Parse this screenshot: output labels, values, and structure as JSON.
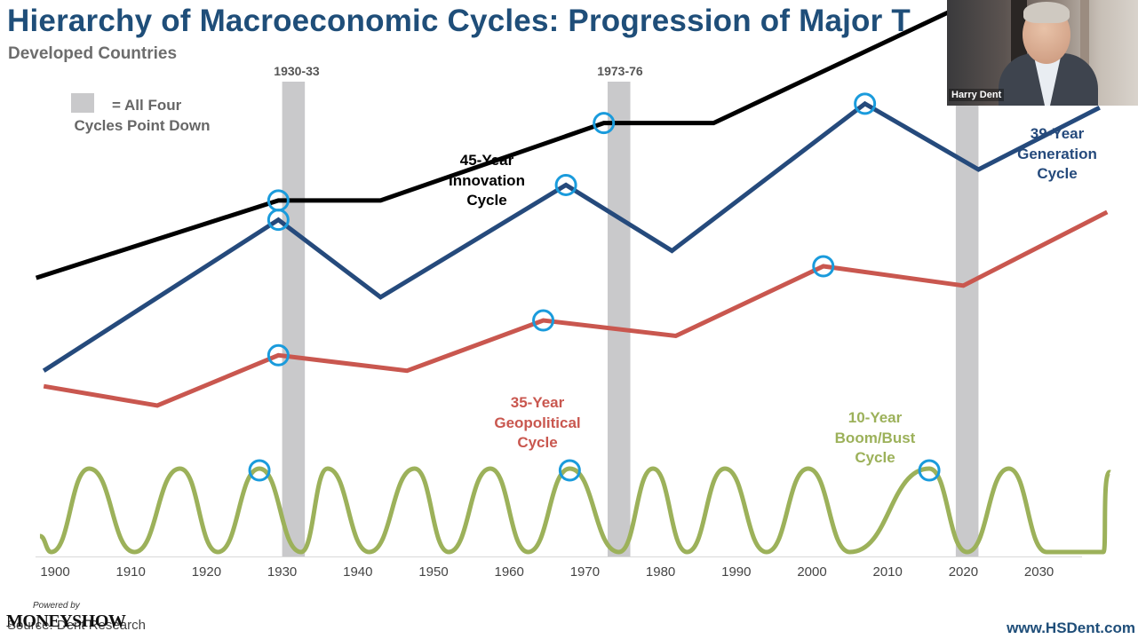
{
  "slide": {
    "title": "Hierarchy of Macroeconomic Cycles: Progression of Major T",
    "subtitle": "Developed Countries",
    "legend_line1": "= All Four",
    "legend_line2": "Cycles Point Down",
    "periods": [
      "1930-33",
      "1973-76"
    ],
    "website": "www.HSDent.com",
    "source": "Source: Dent Research",
    "powered_by": "Powered by",
    "sponsor": "MONEYSHOW"
  },
  "video": {
    "participant_name": "Harry Dent"
  },
  "colors": {
    "title": "#1f4e79",
    "innovation": "#000000",
    "generation": "#254a7c",
    "geopolitical": "#c9574f",
    "boom_bust": "#9cb15a",
    "highlight_circle": "#1a9bdc",
    "shade": "#c9c9cb"
  },
  "chart_data": {
    "type": "line",
    "x_ticks": [
      "1900",
      "1910",
      "1920",
      "1930",
      "1940",
      "1950",
      "1960",
      "1970",
      "1980",
      "1990",
      "2000",
      "2010",
      "2020",
      "2030"
    ],
    "xlim": [
      1898,
      2039
    ],
    "shaded_periods": [
      [
        1930,
        1933
      ],
      [
        1973,
        1976
      ],
      [
        2019,
        2022
      ]
    ],
    "labels": {
      "innovation": [
        "45-Year",
        "Innovation",
        "Cycle"
      ],
      "generation": [
        "39-Year",
        "Generation",
        "Cycle"
      ],
      "geopolitical": [
        "35-Year",
        "Geopolitical",
        "Cycle"
      ],
      "boom_bust": [
        "10-Year",
        "Boom/Bust",
        "Cycle"
      ]
    },
    "series": [
      {
        "name": "45-Year Innovation Cycle",
        "key": "innovation",
        "points": [
          [
            1897.5,
            72
          ],
          [
            1929.5,
            92
          ],
          [
            1943,
            92
          ],
          [
            1972.5,
            112
          ],
          [
            1987,
            112
          ],
          [
            2019.5,
            142
          ]
        ],
        "peaks": [
          1929.5,
          1972.5,
          2019.5
        ]
      },
      {
        "name": "39-Year Generation Cycle",
        "key": "generation",
        "points": [
          [
            1898.5,
            48
          ],
          [
            1929.5,
            87
          ],
          [
            1943,
            67
          ],
          [
            1967.5,
            96
          ],
          [
            1981.5,
            79
          ],
          [
            2007,
            117
          ],
          [
            2022,
            100
          ],
          [
            2038,
            116
          ]
        ],
        "peaks": [
          1929.5,
          1967.5,
          2007
        ]
      },
      {
        "name": "35-Year Geopolitical Cycle",
        "key": "geopolitical",
        "points": [
          [
            1898.5,
            44
          ],
          [
            1913.5,
            39
          ],
          [
            1929.5,
            52
          ],
          [
            1946.5,
            48
          ],
          [
            1964.5,
            61
          ],
          [
            1982,
            57
          ],
          [
            2001.5,
            75
          ],
          [
            2020,
            70
          ],
          [
            2039,
            89
          ]
        ],
        "peaks": [
          1929.5,
          1964.5,
          2001.5
        ]
      },
      {
        "name": "10-Year Boom/Bust Cycle",
        "key": "boom_bust",
        "peak_years": [
          1904.5,
          1916.5,
          1927,
          1936,
          1947.5,
          1957.5,
          1968,
          1979,
          1988.5,
          1999.5,
          2015.5,
          2026
        ],
        "trough_years": [
          1899.5,
          1910.5,
          1921.5,
          1932.5,
          1941.5,
          1952,
          1962.5,
          1974.5,
          1983.5,
          1994,
          2005,
          2020.5,
          2031,
          2038.5
        ],
        "highlighted_peaks": [
          1927,
          1968,
          2015.5
        ]
      }
    ]
  }
}
